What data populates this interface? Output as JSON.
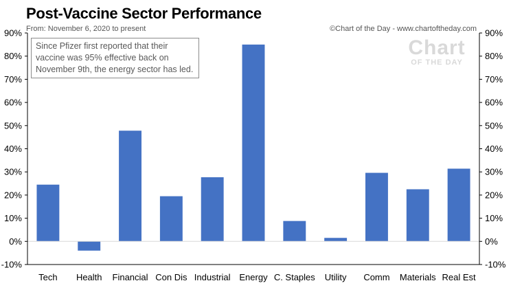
{
  "header": {
    "title": "Post-Vaccine Sector Performance",
    "subtitle": "From: November 6, 2020 to present",
    "credit": "©Chart of the Day - www.chartoftheday.com"
  },
  "annotation": "Since Pfizer first reported that their vaccine was 95% effective back on November 9th, the energy sector has led.",
  "logo": {
    "line1": "Chart",
    "line2": "OF THE DAY"
  },
  "chart_data": {
    "type": "bar",
    "categories": [
      "Tech",
      "Health",
      "Financial",
      "Con Dis",
      "Industrial",
      "Energy",
      "C. Staples",
      "Utility",
      "Comm",
      "Materials",
      "Real Est"
    ],
    "values": [
      24.5,
      -4,
      47.8,
      19.5,
      27.7,
      85,
      8.8,
      1.5,
      29.6,
      22.5,
      31.4
    ],
    "unit": "%",
    "ylim": [
      -10,
      90
    ],
    "yticks": [
      -10,
      0,
      10,
      20,
      30,
      40,
      50,
      60,
      70,
      80,
      90
    ],
    "ytick_labels": [
      "-10%",
      "0%",
      "10%",
      "20%",
      "30%",
      "40%",
      "50%",
      "60%",
      "70%",
      "80%",
      "90%"
    ],
    "bar_color": "#4472c4",
    "axes": "left and right",
    "grid": false
  }
}
